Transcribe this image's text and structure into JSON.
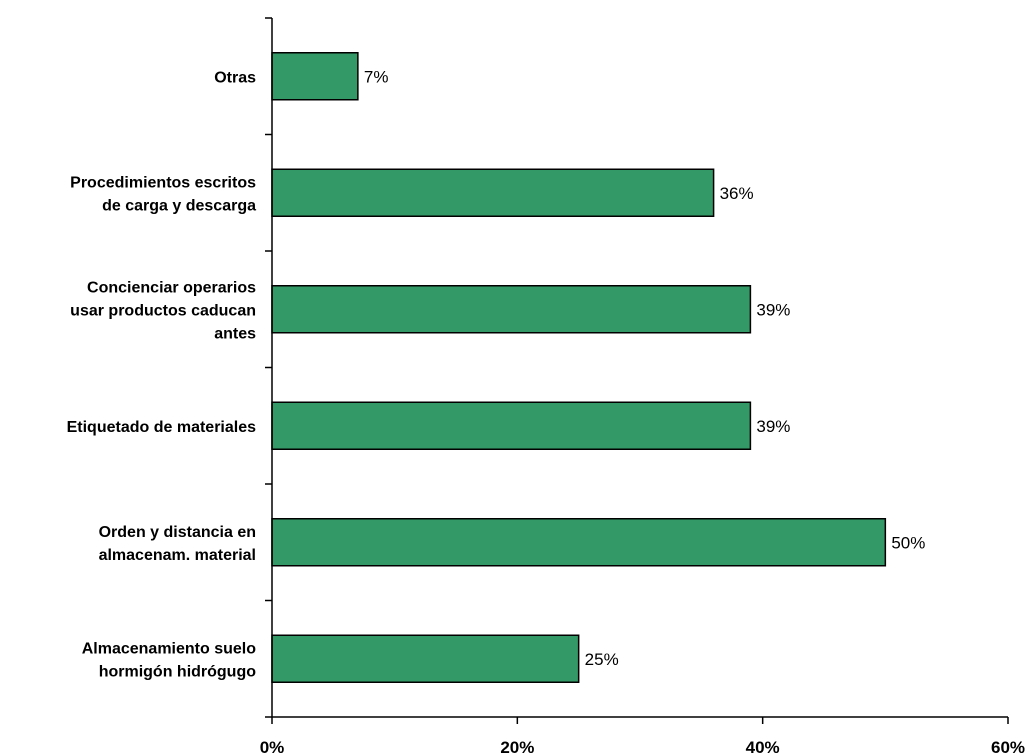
{
  "chart_data": {
    "type": "bar",
    "orientation": "horizontal",
    "categories": [
      [
        "Otras"
      ],
      [
        "Procedimientos escritos",
        "de carga y descarga"
      ],
      [
        "Concienciar operarios",
        "usar productos caducan",
        "antes"
      ],
      [
        "Etiquetado de materiales"
      ],
      [
        "Orden y distancia en",
        "almacenam. material"
      ],
      [
        "Almacenamiento suelo",
        "hormigón hidrógugo"
      ]
    ],
    "values": [
      7,
      36,
      39,
      39,
      50,
      25
    ],
    "value_labels": [
      "7%",
      "36%",
      "39%",
      "39%",
      "50%",
      "25%"
    ],
    "xlim": [
      0,
      60
    ],
    "xticks": [
      0,
      20,
      40,
      60
    ],
    "xtick_labels": [
      "0%",
      "20%",
      "40%",
      "60%"
    ],
    "bar_color": "#339966",
    "grid": false,
    "legend": "none"
  }
}
